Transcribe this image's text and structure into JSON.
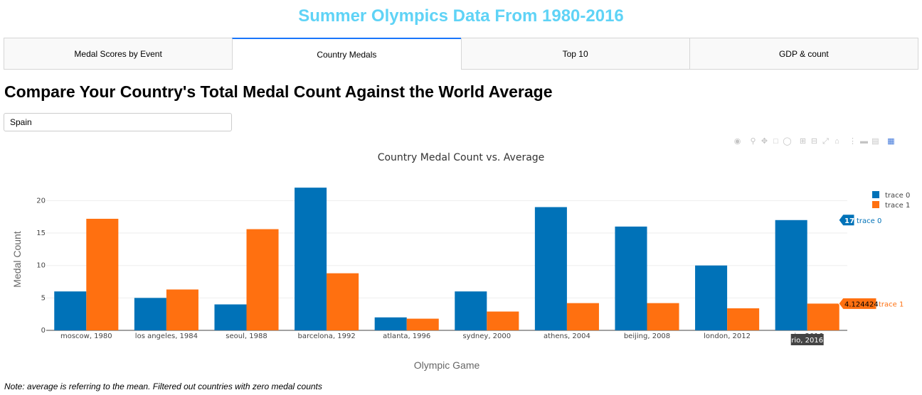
{
  "app": {
    "title": "Summer Olympics Data From 1980-2016"
  },
  "tabs": [
    {
      "label": "Medal Scores by Event",
      "active": false
    },
    {
      "label": "Country Medals",
      "active": true
    },
    {
      "label": "Top 10",
      "active": false
    },
    {
      "label": "GDP & count",
      "active": false
    }
  ],
  "section": {
    "heading": "Compare Your Country's Total Medal Count Against the World Average"
  },
  "country_select": {
    "value": "Spain"
  },
  "modebar": {
    "icons": [
      "camera-icon",
      "zoom-icon",
      "pan-icon",
      "box-select-icon",
      "lasso-icon",
      "zoom-in-icon",
      "zoom-out-icon",
      "autoscale-icon",
      "reset-axes-icon",
      "spike-lines-icon",
      "hover-closest-icon",
      "hover-compare-icon",
      "plotly-logo-icon"
    ]
  },
  "note": "Note: average is referring to the mean. Filtered out countries with zero medal counts",
  "colors": {
    "trace0": "#0072b8",
    "trace1": "#ff7010",
    "title": "#5fd3f6",
    "tab_accent": "#1975fa"
  },
  "chart_data": {
    "type": "bar",
    "title": "Country Medal Count vs. Average",
    "xlabel": "Olympic Game",
    "ylabel": "Medal Count",
    "categories": [
      "moscow, 1980",
      "los angeles, 1984",
      "seoul, 1988",
      "barcelona, 1992",
      "atlanta, 1996",
      "sydney, 2000",
      "athens, 2004",
      "beijing, 2008",
      "london, 2012",
      "rio, 2016"
    ],
    "series": [
      {
        "name": "trace 0",
        "values": [
          6,
          5,
          4,
          22,
          2,
          6,
          19,
          16,
          10,
          17
        ]
      },
      {
        "name": "trace 1",
        "values": [
          17.2,
          6.3,
          15.6,
          8.8,
          1.8,
          2.9,
          4.2,
          4.2,
          3.4,
          4.124424
        ]
      }
    ],
    "ylim": [
      0,
      23
    ],
    "yticks": [
      0,
      5,
      10,
      15,
      20
    ],
    "grid": true,
    "legend": "top-right",
    "hover": {
      "category": "rio, 2016",
      "labels": [
        "17",
        "4.124424"
      ]
    }
  }
}
